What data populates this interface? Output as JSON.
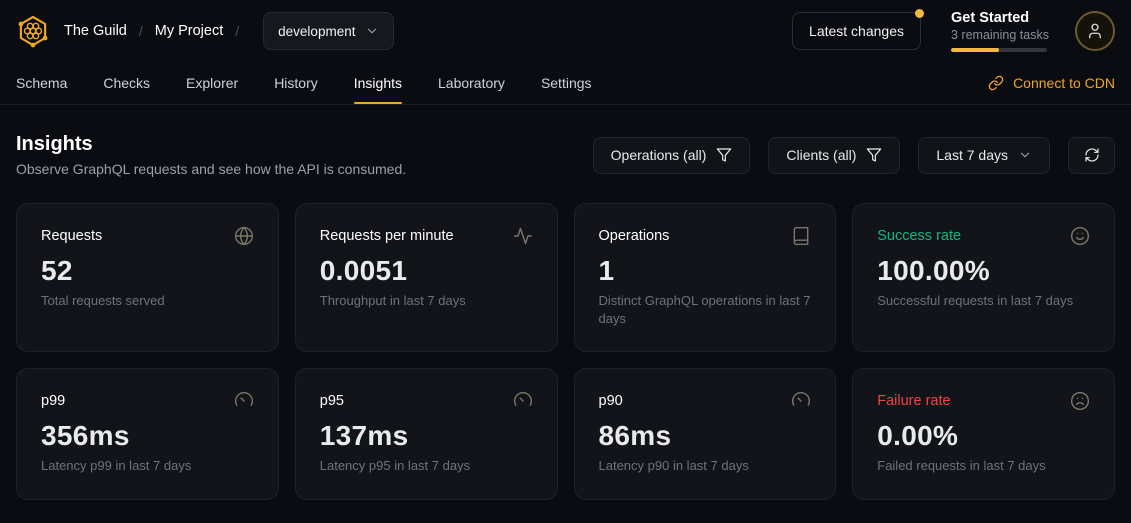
{
  "header": {
    "breadcrumb": {
      "org": "The Guild",
      "separator": "/",
      "project": "My Project"
    },
    "target_selector": {
      "value": "development"
    },
    "latest_changes_label": "Latest changes",
    "get_started": {
      "title": "Get Started",
      "subtitle": "3 remaining tasks",
      "progress_percent": 50
    }
  },
  "nav": {
    "tabs": [
      {
        "label": "Schema",
        "active": false
      },
      {
        "label": "Checks",
        "active": false
      },
      {
        "label": "Explorer",
        "active": false
      },
      {
        "label": "History",
        "active": false
      },
      {
        "label": "Insights",
        "active": true
      },
      {
        "label": "Laboratory",
        "active": false
      },
      {
        "label": "Settings",
        "active": false
      }
    ],
    "connect_cdn_label": "Connect to CDN"
  },
  "page": {
    "title": "Insights",
    "subtitle": "Observe GraphQL requests and see how the API is consumed."
  },
  "filters": {
    "operations_label": "Operations (all)",
    "clients_label": "Clients (all)",
    "period_label": "Last 7 days"
  },
  "cards": [
    {
      "title": "Requests",
      "value": "52",
      "description": "Total requests served",
      "icon": "globe-icon",
      "title_color": "#ffffff"
    },
    {
      "title": "Requests per minute",
      "value": "0.0051",
      "description": "Throughput in last 7 days",
      "icon": "activity-icon",
      "title_color": "#ffffff"
    },
    {
      "title": "Operations",
      "value": "1",
      "description": "Distinct GraphQL operations in last 7 days",
      "icon": "book-icon",
      "title_color": "#ffffff"
    },
    {
      "title": "Success rate",
      "value": "100.00%",
      "description": "Successful requests in last 7 days",
      "icon": "smile-icon",
      "title_color": "#10b981"
    },
    {
      "title": "p99",
      "value": "356ms",
      "description": "Latency p99 in last 7 days",
      "icon": "gauge-icon",
      "title_color": "#ffffff"
    },
    {
      "title": "p95",
      "value": "137ms",
      "description": "Latency p95 in last 7 days",
      "icon": "gauge-icon",
      "title_color": "#ffffff"
    },
    {
      "title": "p90",
      "value": "86ms",
      "description": "Latency p90 in last 7 days",
      "icon": "gauge-icon",
      "title_color": "#ffffff"
    },
    {
      "title": "Failure rate",
      "value": "0.00%",
      "description": "Failed requests in last 7 days",
      "icon": "frown-icon",
      "title_color": "#ef4444"
    }
  ],
  "colors": {
    "accent": "#f0a42c",
    "progress": "#f4b740",
    "success": "#10b981",
    "danger": "#ef4444"
  }
}
